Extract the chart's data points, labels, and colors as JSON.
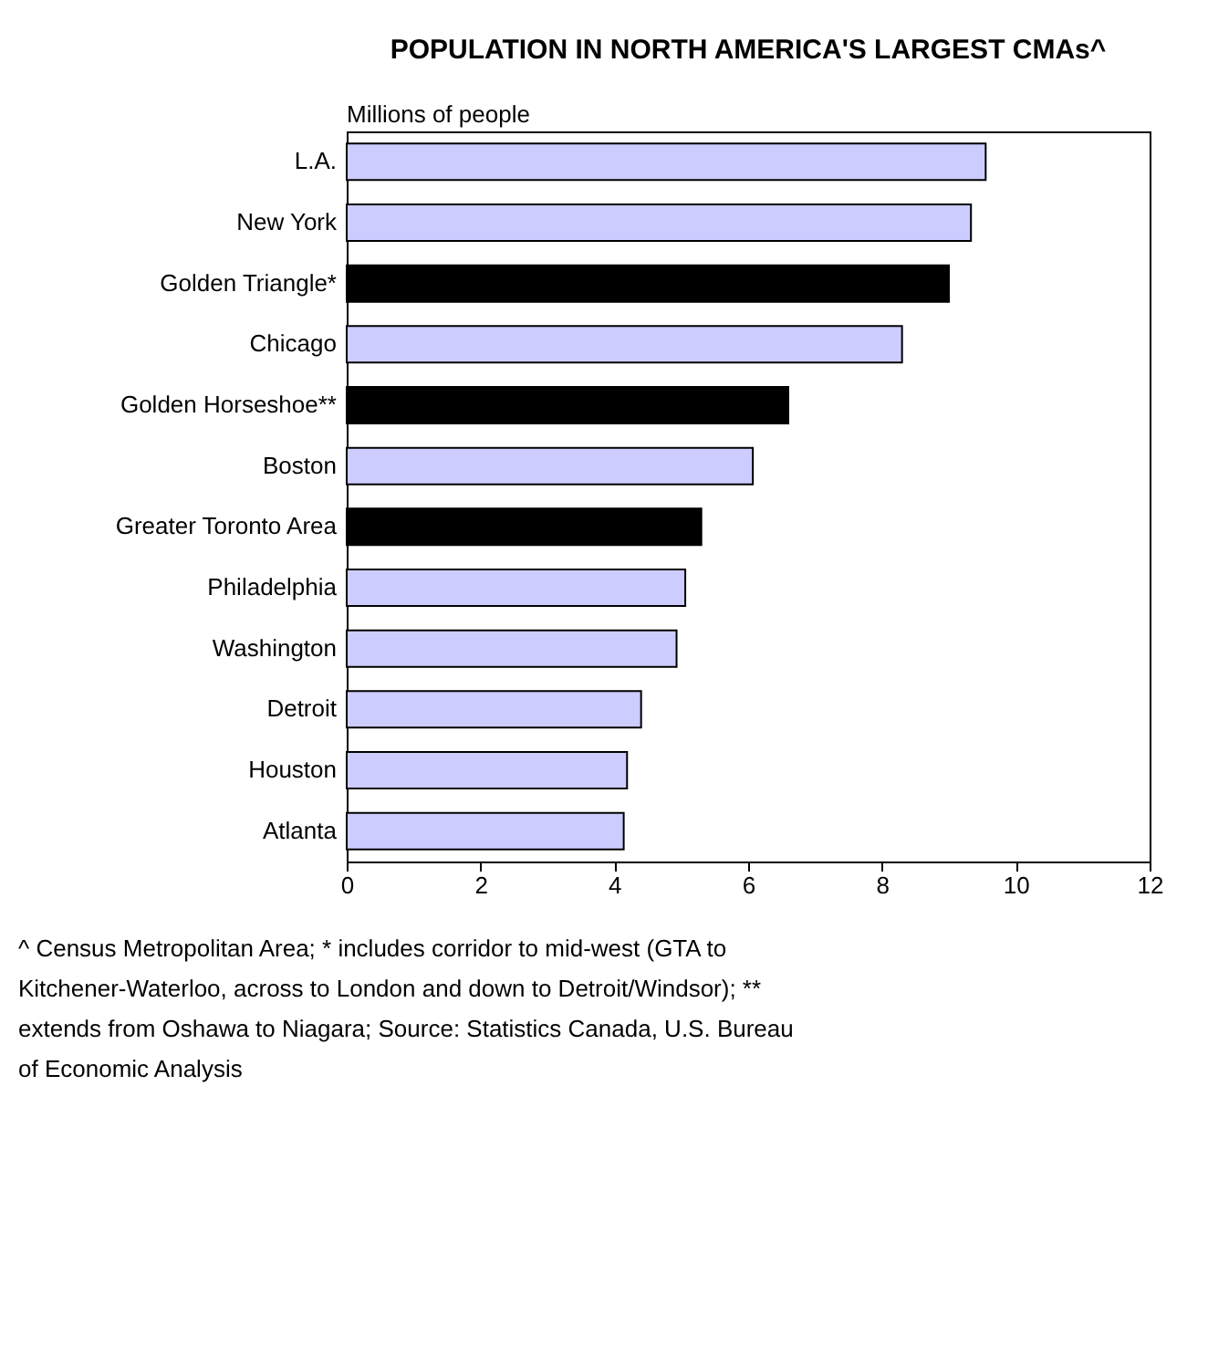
{
  "chart_data": {
    "type": "bar",
    "orientation": "horizontal",
    "title": "POPULATION IN NORTH AMERICA'S LARGEST CMAs^",
    "xlabel": "Millions of people",
    "categories": [
      "L.A.",
      "New York",
      "Golden Triangle*",
      "Chicago",
      "Golden Horseshoe**",
      "Boston",
      "Greater Toronto Area",
      "Philadelphia",
      "Washington",
      "Detroit",
      "Houston",
      "Atlanta"
    ],
    "values": [
      9.55,
      9.33,
      9.0,
      8.3,
      6.6,
      6.07,
      5.3,
      5.06,
      4.93,
      4.4,
      4.19,
      4.14
    ],
    "colors": [
      "#ccccff",
      "#ccccff",
      "#000000",
      "#ccccff",
      "#000000",
      "#ccccff",
      "#000000",
      "#ccccff",
      "#ccccff",
      "#ccccff",
      "#ccccff",
      "#ccccff"
    ],
    "xlim": [
      0,
      12
    ],
    "xticks": [
      0,
      2,
      4,
      6,
      8,
      10,
      12
    ],
    "grid": false,
    "annotations": [
      "^ Census Metropolitan Area; * includes corridor to mid-west (GTA to Kitchener-Waterloo, across to London and down to Detroit/Windsor); ** extends from Oshawa to Niagara; Source: Statistics Canada, U.S. Bureau of Economic Analysis"
    ]
  }
}
